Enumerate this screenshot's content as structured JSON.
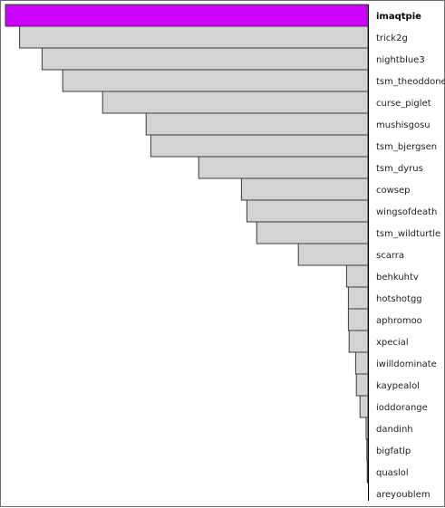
{
  "chart_data": {
    "type": "bar",
    "orientation": "horizontal",
    "direction": "right-aligned",
    "title": "",
    "xlabel": "",
    "ylabel": "",
    "xlim": [
      0,
      100
    ],
    "grid": false,
    "categories": [
      "imaqtpie",
      "trick2g",
      "nightblue3",
      "tsm_theoddone",
      "curse_piglet",
      "mushisgosu",
      "tsm_bjergsen",
      "tsm_dyrus",
      "cowsep",
      "wingsofdeath",
      "tsm_wildturtle",
      "scarra",
      "behkuhtv",
      "hotshotgg",
      "aphromoo",
      "xpecial",
      "iwilldominate",
      "kaypealol",
      "ioddorange",
      "dandinh",
      "bigfatlp",
      "quaslol",
      "areyoublem"
    ],
    "values": [
      100,
      96.1,
      89.9,
      84.2,
      73.2,
      61.2,
      59.9,
      46.7,
      34.9,
      33.4,
      30.7,
      19.2,
      5.9,
      5.4,
      5.4,
      5.2,
      3.4,
      3.2,
      2.2,
      0.5,
      0.3,
      0.2,
      0.0
    ],
    "highlight_index": 0,
    "colors": {
      "highlight": "#cc00ff",
      "default": "#d3d3d3",
      "edge": "#3c3c3c"
    }
  }
}
